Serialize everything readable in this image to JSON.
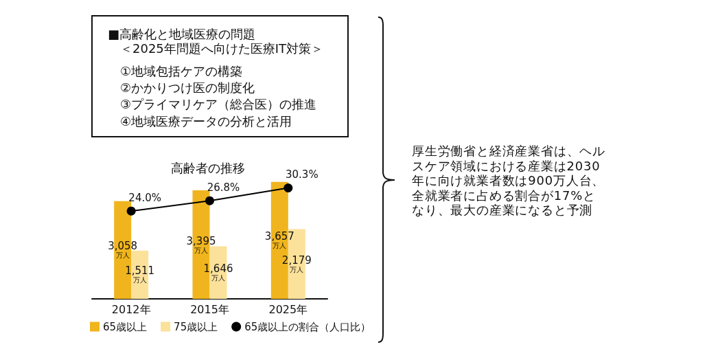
{
  "chart_data": {
    "type": "bar",
    "title": "高齢者の推移",
    "categories": [
      "2012年",
      "2015年",
      "2025年"
    ],
    "series": [
      {
        "name": "65歳以上",
        "color": "#f0b51e",
        "values": [
          3058,
          3395,
          3657
        ],
        "value_labels": [
          "3,058万人",
          "3,395万人",
          "3,657万人"
        ]
      },
      {
        "name": "75歳以上",
        "color": "#fbe19a",
        "values": [
          1511,
          1646,
          2179
        ],
        "value_labels": [
          "1,511万人",
          "1,646万人",
          "2,179万人"
        ]
      },
      {
        "name": "65歳以上の割合（人口比）",
        "type": "line",
        "axis": "y2",
        "color": "#000000",
        "values": [
          24.0,
          26.8,
          30.3
        ],
        "value_labels": [
          "24.0%",
          "26.8%",
          "30.3%"
        ]
      }
    ],
    "marker": "circle",
    "line_style": "solid",
    "legend": "bottom",
    "tick_labels": "x",
    "annotations": [
      "■高齢化と地域医療の問題",
      "＜2025年問題へ向けた医療IT対策＞",
      "①地域包括ケアの構築",
      "②かかりつけ医の制度化",
      "③プライマリケア（総合医）の推進",
      "④地域医療データの分析と活用",
      "厚生労働省と経済産業省は、ヘルスケア領域における産業は2030年に向け就業者数は900万人台、全就業者に占める割合が17%となり、最大の産業になると予測"
    ]
  }
}
